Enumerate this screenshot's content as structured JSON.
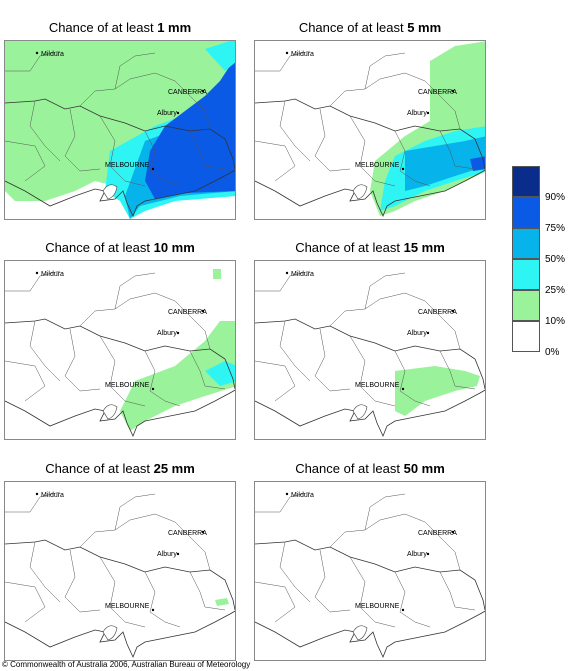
{
  "panels": [
    {
      "prefix": "Chance of at least ",
      "amount": "1 mm"
    },
    {
      "prefix": "Chance of at least ",
      "amount": "5 mm"
    },
    {
      "prefix": "Chance of at least ",
      "amount": "10 mm"
    },
    {
      "prefix": "Chance of at least ",
      "amount": "15 mm"
    },
    {
      "prefix": "Chance of at least ",
      "amount": "25 mm"
    },
    {
      "prefix": "Chance of at least ",
      "amount": "50 mm"
    }
  ],
  "places": {
    "mildura": "Mildura",
    "canberra": "CANBERRA",
    "albury": "Albury",
    "melbourne": "MELBOURNE"
  },
  "legend": {
    "colors": [
      "#0a2d8c",
      "#0a5ae6",
      "#06b4eb",
      "#2ef4f4",
      "#9af29a",
      "#ffffff"
    ],
    "labels": [
      "90%",
      "75%",
      "50%",
      "25%",
      "10%",
      "0%"
    ]
  },
  "colors": {
    "c10": "#9af29a",
    "c25": "#2ef4f4",
    "c50": "#06b4eb",
    "c75": "#0a5ae6",
    "c90": "#0a2d8c"
  },
  "copyright": "© Commonwealth of Australia 2006, Australian Bureau of Meteorology"
}
